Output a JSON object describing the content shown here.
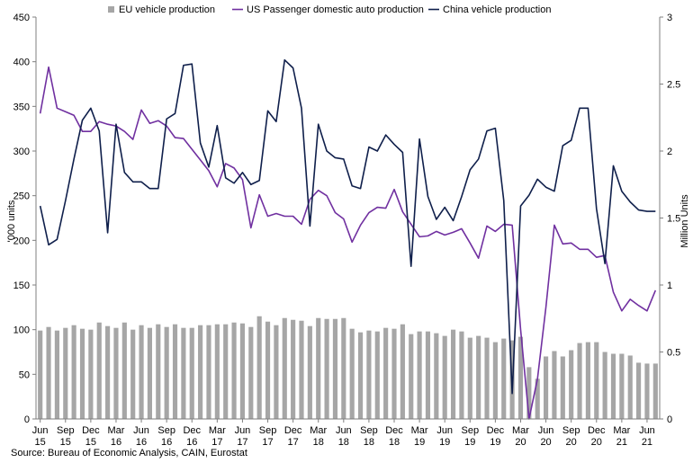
{
  "source": "Source: Bureau of Economic Analysis, CAIN, Eurostat",
  "chart_data": {
    "type": "bar+line",
    "title": "",
    "ylabel": "'000 units",
    "ylabel_right": "Million Units",
    "ylim": [
      0,
      450
    ],
    "ylim_right": [
      0,
      3
    ],
    "yticks": [
      "0",
      "50",
      "100",
      "150",
      "200",
      "250",
      "300",
      "350",
      "400",
      "450"
    ],
    "yticks_right": [
      "0",
      "0.5",
      "1",
      "1.5",
      "2",
      "2.5",
      "3"
    ],
    "legend_position": "top",
    "grid": false,
    "x": [
      "Jun 15",
      "Jul 15",
      "Aug 15",
      "Sep 15",
      "Oct 15",
      "Nov 15",
      "Dec 15",
      "Jan 16",
      "Feb 16",
      "Mar 16",
      "Apr 16",
      "May 16",
      "Jun 16",
      "Jul 16",
      "Aug 16",
      "Sep 16",
      "Oct 16",
      "Nov 16",
      "Dec 16",
      "Jan 17",
      "Feb 17",
      "Mar 17",
      "Apr 17",
      "May 17",
      "Jun 17",
      "Jul 17",
      "Aug 17",
      "Sep 17",
      "Oct 17",
      "Nov 17",
      "Dec 17",
      "Jan 18",
      "Feb 18",
      "Mar 18",
      "Apr 18",
      "May 18",
      "Jun 18",
      "Jul 18",
      "Aug 18",
      "Sep 18",
      "Oct 18",
      "Nov 18",
      "Dec 18",
      "Jan 19",
      "Feb 19",
      "Mar 19",
      "Apr 19",
      "May 19",
      "Jun 19",
      "Jul 19",
      "Aug 19",
      "Sep 19",
      "Oct 19",
      "Nov 19",
      "Dec 19",
      "Jan 20",
      "Feb 20",
      "Mar 20",
      "Apr 20",
      "May 20",
      "Jun 20",
      "Jul 20",
      "Aug 20",
      "Sep 20",
      "Oct 20",
      "Nov 20",
      "Dec 20",
      "Jan 21",
      "Feb 21",
      "Mar 21",
      "Apr 21",
      "May 21",
      "Jun 21",
      "Jul 21"
    ],
    "xticks": [
      {
        "month": "Jun",
        "year": "15",
        "index": 0
      },
      {
        "month": "Sep",
        "year": "15",
        "index": 3
      },
      {
        "month": "Dec",
        "year": "15",
        "index": 6
      },
      {
        "month": "Mar",
        "year": "16",
        "index": 9
      },
      {
        "month": "Jun",
        "year": "16",
        "index": 12
      },
      {
        "month": "Sep",
        "year": "16",
        "index": 15
      },
      {
        "month": "Dec",
        "year": "16",
        "index": 18
      },
      {
        "month": "Mar",
        "year": "17",
        "index": 21
      },
      {
        "month": "Jun",
        "year": "17",
        "index": 24
      },
      {
        "month": "Sep",
        "year": "17",
        "index": 27
      },
      {
        "month": "Dec",
        "year": "17",
        "index": 30
      },
      {
        "month": "Mar",
        "year": "18",
        "index": 33
      },
      {
        "month": "Jun",
        "year": "18",
        "index": 36
      },
      {
        "month": "Sep",
        "year": "18",
        "index": 39
      },
      {
        "month": "Dec",
        "year": "18",
        "index": 42
      },
      {
        "month": "Mar",
        "year": "19",
        "index": 45
      },
      {
        "month": "Jun",
        "year": "19",
        "index": 48
      },
      {
        "month": "Sep",
        "year": "19",
        "index": 51
      },
      {
        "month": "Dec",
        "year": "19",
        "index": 54
      },
      {
        "month": "Mar",
        "year": "20",
        "index": 57
      },
      {
        "month": "Jun",
        "year": "20",
        "index": 60
      },
      {
        "month": "Sep",
        "year": "20",
        "index": 63
      },
      {
        "month": "Dec",
        "year": "20",
        "index": 66
      },
      {
        "month": "Mar",
        "year": "21",
        "index": 69
      },
      {
        "month": "Jun",
        "year": "21",
        "index": 72
      }
    ],
    "series": [
      {
        "name": "EU vehicle production",
        "type": "bar",
        "axis": "left",
        "color": "#a6a6a6",
        "values": [
          99,
          103,
          99,
          102,
          105,
          101,
          100,
          108,
          104,
          102,
          108,
          100,
          105,
          102,
          106,
          103,
          106,
          102,
          102,
          105,
          105,
          106,
          106,
          108,
          107,
          103,
          115,
          109,
          105,
          113,
          111,
          110,
          104,
          113,
          112,
          112,
          113,
          101,
          97,
          99,
          98,
          102,
          101,
          106,
          95,
          98,
          98,
          96,
          93,
          100,
          98,
          91,
          93,
          91,
          86,
          90,
          88,
          92,
          58,
          45,
          70,
          76,
          70,
          77,
          85,
          86,
          86,
          75,
          73,
          73,
          71,
          63,
          62,
          62
        ]
      },
      {
        "name": "US Passenger domestic auto production",
        "type": "line",
        "axis": "left",
        "color": "#7030a0",
        "values": [
          342,
          394,
          348,
          344,
          340,
          322,
          322,
          333,
          330,
          328,
          322,
          313,
          346,
          331,
          334,
          328,
          315,
          314,
          302,
          290,
          278,
          260,
          286,
          281,
          268,
          214,
          251,
          227,
          230,
          227,
          227,
          218,
          246,
          256,
          250,
          231,
          224,
          198,
          217,
          231,
          237,
          236,
          257,
          232,
          218,
          204,
          205,
          210,
          206,
          209,
          213,
          197,
          180,
          216,
          210,
          218,
          217,
          100,
          0,
          45,
          125,
          217,
          196,
          197,
          190,
          190,
          181,
          183,
          142,
          121,
          134,
          127,
          121,
          144
        ]
      },
      {
        "name": "China vehicle production",
        "type": "line",
        "axis": "right",
        "color": "#0f1f4b",
        "values": [
          1.59,
          1.3,
          1.34,
          1.63,
          1.94,
          2.23,
          2.32,
          2.15,
          1.39,
          2.2,
          1.84,
          1.77,
          1.77,
          1.72,
          1.72,
          2.24,
          2.28,
          2.64,
          2.65,
          2.06,
          1.88,
          2.19,
          1.8,
          1.76,
          1.84,
          1.75,
          1.78,
          2.3,
          2.22,
          2.68,
          2.62,
          2.32,
          1.44,
          2.2,
          2.0,
          1.95,
          1.94,
          1.74,
          1.72,
          2.03,
          2.0,
          2.12,
          2.05,
          1.99,
          1.14,
          2.09,
          1.66,
          1.49,
          1.58,
          1.48,
          1.66,
          1.86,
          1.94,
          2.15,
          2.17,
          1.63,
          0.19,
          1.59,
          1.67,
          1.79,
          1.73,
          1.7,
          2.04,
          2.08,
          2.32,
          2.32,
          1.57,
          1.16,
          1.89,
          1.7,
          1.62,
          1.56,
          1.55,
          1.55
        ]
      }
    ]
  }
}
